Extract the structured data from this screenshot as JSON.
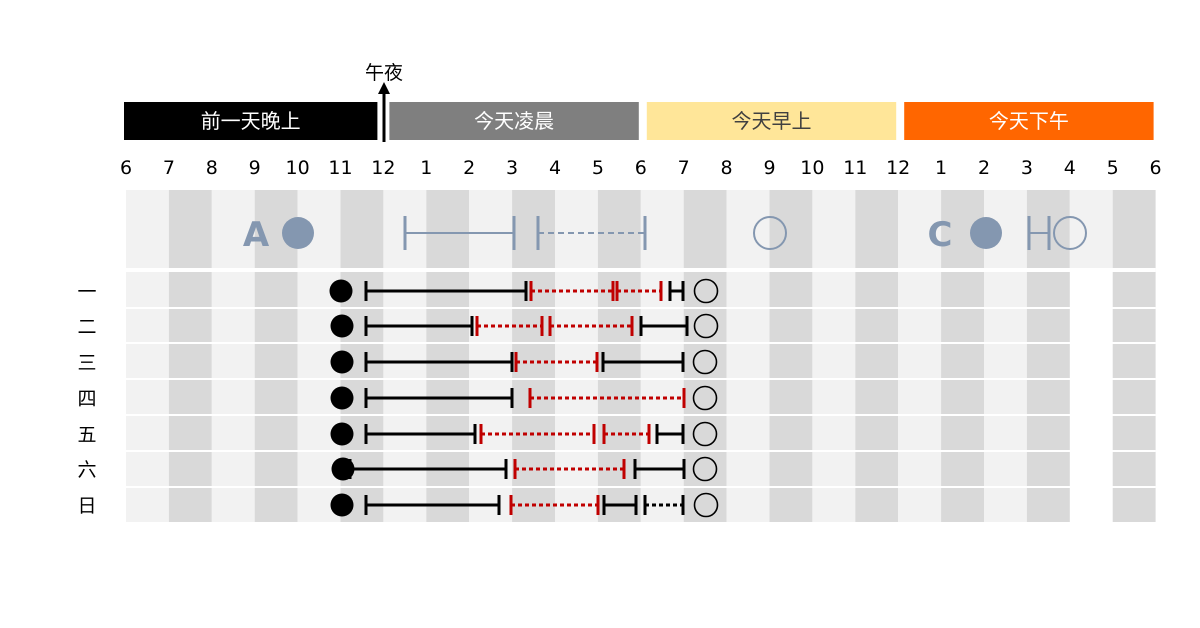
{
  "midnight_label": "午夜",
  "periods": [
    {
      "label": "前一天晚上",
      "start": 0,
      "end": 6,
      "fill": "#000000",
      "text_color": "#ffffff"
    },
    {
      "label": "今天凌晨",
      "start": 6,
      "end": 12,
      "fill": "#7f7f7f",
      "text_color": "#ffffff"
    },
    {
      "label": "今天早上",
      "start": 12,
      "end": 18,
      "fill": "#ffe699",
      "text_color": "#404040"
    },
    {
      "label": "今天下午",
      "start": 18,
      "end": 24,
      "fill": "#ff6600",
      "text_color": "#ffffff"
    }
  ],
  "hour_labels": [
    "6",
    "7",
    "8",
    "9",
    "10",
    "11",
    "12",
    "1",
    "2",
    "3",
    "4",
    "5",
    "6",
    "7",
    "8",
    "9",
    "10",
    "11",
    "12",
    "1",
    "2",
    "3",
    "4",
    "5",
    "6"
  ],
  "legend": {
    "marker_a": {
      "text": "A",
      "hour": 4.0
    },
    "marker_c": {
      "text": "C",
      "hour": 20.1
    },
    "color": "#8497b0"
  },
  "days": [
    "一",
    "二",
    "三",
    "四",
    "五",
    "六",
    "日"
  ],
  "colors": {
    "solid": "#000000",
    "dashed": "#c00000",
    "legend": "#8497b0"
  }
}
